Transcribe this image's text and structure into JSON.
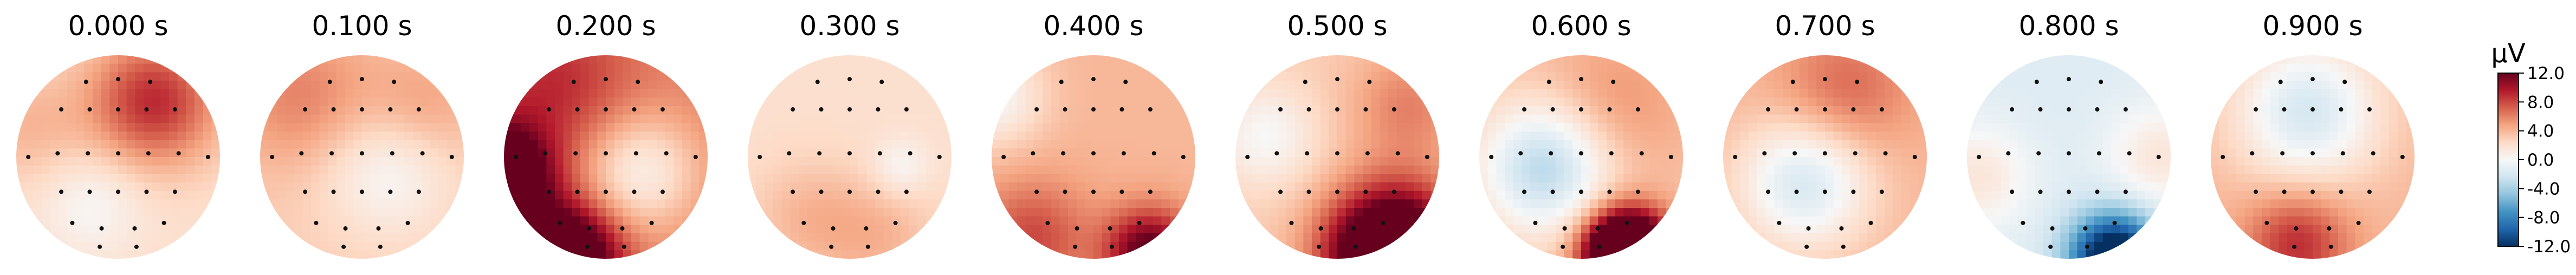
{
  "chart_data": {
    "type": "heatmap",
    "panel_titles": [
      "0.000 s",
      "0.100 s",
      "0.200 s",
      "0.300 s",
      "0.400 s",
      "0.500 s",
      "0.600 s",
      "0.700 s",
      "0.800 s",
      "0.900 s"
    ],
    "colorbar": {
      "unit": "µV",
      "range": [
        -12.0,
        12.0
      ],
      "ticks": [
        "12.0",
        "8.0",
        "4.0",
        "0.0",
        "-4.0",
        "-8.0",
        "-12.0"
      ],
      "colormap": [
        "#053061",
        "#2166ac",
        "#4393c3",
        "#92c5de",
        "#d1e5f0",
        "#f7f7f7",
        "#fddbc7",
        "#f4a582",
        "#d6604d",
        "#b2182b",
        "#67001f"
      ]
    },
    "sensors_normalized": [
      [
        -0.35,
        0.82
      ],
      [
        0.0,
        0.85
      ],
      [
        0.35,
        0.82
      ],
      [
        -0.62,
        0.52
      ],
      [
        -0.31,
        0.52
      ],
      [
        0.0,
        0.52
      ],
      [
        0.31,
        0.52
      ],
      [
        0.62,
        0.52
      ],
      [
        -0.98,
        0.0
      ],
      [
        -0.66,
        0.04
      ],
      [
        -0.33,
        0.04
      ],
      [
        0.0,
        0.04
      ],
      [
        0.33,
        0.04
      ],
      [
        0.66,
        0.04
      ],
      [
        0.98,
        0.0
      ],
      [
        -0.62,
        -0.38
      ],
      [
        -0.31,
        -0.38
      ],
      [
        0.0,
        -0.38
      ],
      [
        0.31,
        -0.38
      ],
      [
        0.62,
        -0.38
      ],
      [
        -0.5,
        -0.72
      ],
      [
        -0.18,
        -0.78
      ],
      [
        0.18,
        -0.78
      ],
      [
        0.5,
        -0.72
      ],
      [
        -0.2,
        -0.98
      ],
      [
        0.2,
        -0.98
      ]
    ],
    "maps": [
      {
        "base": 2.0,
        "blobs": [
          [
            0.35,
            0.55,
            0.45,
            7
          ],
          [
            -0.25,
            -0.45,
            0.35,
            -2
          ],
          [
            -0.9,
            0.3,
            0.4,
            2
          ]
        ]
      },
      {
        "base": 3.0,
        "blobs": [
          [
            0.25,
            -0.15,
            0.45,
            -3
          ],
          [
            -0.6,
            0.6,
            0.5,
            3
          ],
          [
            0.6,
            0.5,
            0.4,
            2
          ]
        ]
      },
      {
        "base": 6.0,
        "blobs": [
          [
            0.35,
            -0.15,
            0.4,
            -5
          ],
          [
            -1.05,
            -0.2,
            0.35,
            12
          ],
          [
            -0.4,
            -1.0,
            0.35,
            12
          ],
          [
            -0.5,
            0.7,
            0.5,
            3
          ]
        ]
      },
      {
        "base": 2.0,
        "blobs": [
          [
            0.5,
            -0.1,
            0.2,
            -2
          ],
          [
            -0.4,
            -0.6,
            0.4,
            2
          ],
          [
            0.3,
            -0.8,
            0.4,
            2
          ]
        ]
      },
      {
        "base": 4.0,
        "blobs": [
          [
            -1.0,
            0.6,
            0.35,
            -4
          ],
          [
            0.55,
            -0.95,
            0.3,
            9
          ],
          [
            -0.6,
            -0.8,
            0.4,
            4
          ]
        ]
      },
      {
        "base": 3.0,
        "blobs": [
          [
            0.55,
            -0.98,
            0.45,
            18
          ],
          [
            -0.7,
            0.2,
            0.35,
            -3
          ],
          [
            0.7,
            0.5,
            0.4,
            3
          ]
        ]
      },
      {
        "base": 3.5,
        "blobs": [
          [
            -0.35,
            -0.1,
            0.45,
            -7
          ],
          [
            0.45,
            -0.95,
            0.28,
            22
          ],
          [
            0.3,
            0.5,
            0.5,
            2
          ]
        ]
      },
      {
        "base": 4.0,
        "blobs": [
          [
            -0.2,
            -0.25,
            0.45,
            -6
          ],
          [
            0.2,
            0.65,
            0.45,
            3
          ]
        ]
      },
      {
        "base": -1.5,
        "blobs": [
          [
            0.45,
            -1.0,
            0.3,
            -14
          ],
          [
            -0.9,
            -0.2,
            0.35,
            3
          ],
          [
            0.9,
            0.0,
            0.35,
            3
          ]
        ]
      },
      {
        "base": 4.0,
        "blobs": [
          [
            -0.05,
            0.45,
            0.5,
            -6
          ],
          [
            -0.15,
            -0.85,
            0.35,
            5
          ]
        ]
      }
    ]
  }
}
